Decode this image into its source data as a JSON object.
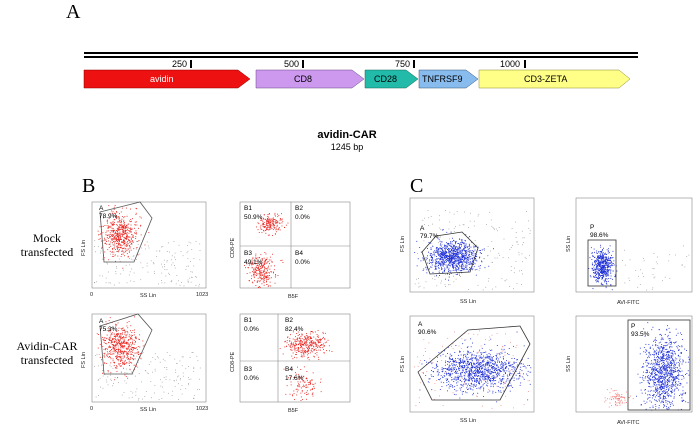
{
  "panels": {
    "a": "A",
    "b": "B",
    "c": "C"
  },
  "construct": {
    "name": "avidin-CAR",
    "length": "1245 bp",
    "ruler_ticks": [
      "250",
      "500",
      "750",
      "1000"
    ],
    "segments": [
      {
        "label": "avidin",
        "color": "#ee1111",
        "text_color": "#ffffff"
      },
      {
        "label": "CD8",
        "color": "#cc99ee",
        "text_color": "#000000"
      },
      {
        "label": "CD28",
        "color": "#22bbaa",
        "text_color": "#000000"
      },
      {
        "label": "TNFRSF9",
        "color": "#88bbee",
        "text_color": "#000000"
      },
      {
        "label": "CD3-ZETA",
        "color": "#ffff88",
        "text_color": "#000000"
      }
    ]
  },
  "rows": [
    {
      "label_line1": "Mock",
      "label_line2": "transfected"
    },
    {
      "label_line1": "Avidin-CAR",
      "label_line2": "transfected"
    }
  ],
  "plots": {
    "b_scatter_top": {
      "gate": "A",
      "pct": "78.9%",
      "xlabel": "SS Lin",
      "ylabel": "FS Lin",
      "x_max": "1023",
      "x_min": "0"
    },
    "b_scatter_bottom": {
      "gate": "A",
      "pct": "75.3%",
      "xlabel": "SS Lin",
      "ylabel": "FS Lin",
      "x_max": "1023",
      "x_min": "0"
    },
    "b_quad_top": {
      "q1": "B1",
      "q1p": "50.9%",
      "q2": "B2",
      "q2p": "0.0%",
      "q3": "B3",
      "q3p": "49.1%",
      "q4": "B4",
      "q4p": "0.0%",
      "xlabel": "B5F",
      "ylabel": "CD8-PE"
    },
    "b_quad_bottom": {
      "q1": "B1",
      "q1p": "0.0%",
      "q2": "B2",
      "q2p": "82.4%",
      "q3": "B3",
      "q3p": "0.0%",
      "q4": "B4",
      "q4p": "17.6%",
      "xlabel": "B5F",
      "ylabel": "CD8-PE"
    },
    "c_scatter_top": {
      "gate": "A",
      "pct": "79.7%",
      "xlabel": "SS Lin",
      "ylabel": "FS Lin"
    },
    "c_scatter_bottom": {
      "gate": "A",
      "pct": "90.6%",
      "xlabel": "SS Lin",
      "ylabel": "FS Lin"
    },
    "c_hist_top": {
      "gate": "P",
      "pct": "98.6%",
      "xlabel": "AVI-FITC",
      "ylabel": "SS Lin"
    },
    "c_hist_bottom": {
      "gate": "P",
      "pct": "93.5%",
      "xlabel": "AVI-FITC",
      "ylabel": "SS Lin"
    }
  },
  "colors": {
    "red": "#e8231e",
    "blue": "#1f2fd6",
    "grey": "#9a9a9a",
    "pink": "#f07a7a"
  }
}
